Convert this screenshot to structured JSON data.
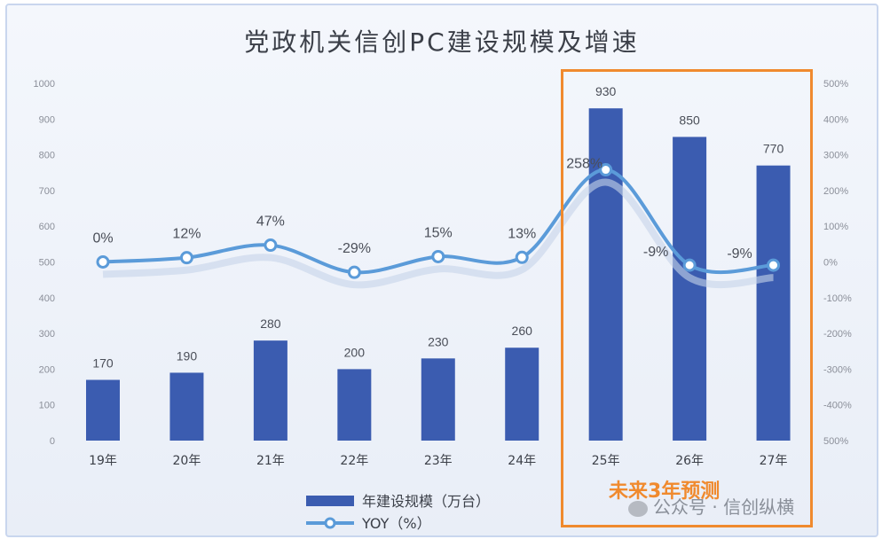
{
  "chart_data": {
    "type": "bar",
    "title": "党政机关信创PC建设规模及增速",
    "categories": [
      "19年",
      "20年",
      "21年",
      "22年",
      "23年",
      "24年",
      "25年",
      "26年",
      "27年"
    ],
    "series": [
      {
        "name": "年建设规模（万台）",
        "type": "bar",
        "axis": "left",
        "values": [
          170,
          190,
          280,
          200,
          230,
          260,
          930,
          850,
          770
        ],
        "labels": [
          "170",
          "190",
          "280",
          "200",
          "230",
          "260",
          "930",
          "850",
          "770"
        ]
      },
      {
        "name": "YOY（%）",
        "type": "line",
        "axis": "right",
        "values": [
          0,
          12,
          47,
          -29,
          15,
          13,
          258,
          -9,
          -9
        ],
        "labels": [
          "0%",
          "12%",
          "47%",
          "-29%",
          "15%",
          "13%",
          "258%",
          "-9%",
          "-9%"
        ]
      }
    ],
    "left_axis": {
      "min": 0,
      "max": 1000,
      "ticks": [
        "0",
        "100",
        "200",
        "300",
        "400",
        "500",
        "600",
        "700",
        "800",
        "900",
        "1000"
      ]
    },
    "right_axis": {
      "min": -500,
      "max": 500,
      "ticks": [
        "500%",
        "400%",
        "300%",
        "200%",
        "100%",
        "0%",
        "-100%",
        "-200%",
        "-300%",
        "-400%",
        "500%"
      ]
    },
    "legend_position": "bottom-center",
    "colors": {
      "bar": "#3b5cb0",
      "line": "#5b9bd9",
      "highlight": "#f08a2e"
    }
  },
  "annotation": {
    "forecast_label": "未来3年预测"
  },
  "watermark": {
    "text": "公众号 · 信创纵横"
  }
}
